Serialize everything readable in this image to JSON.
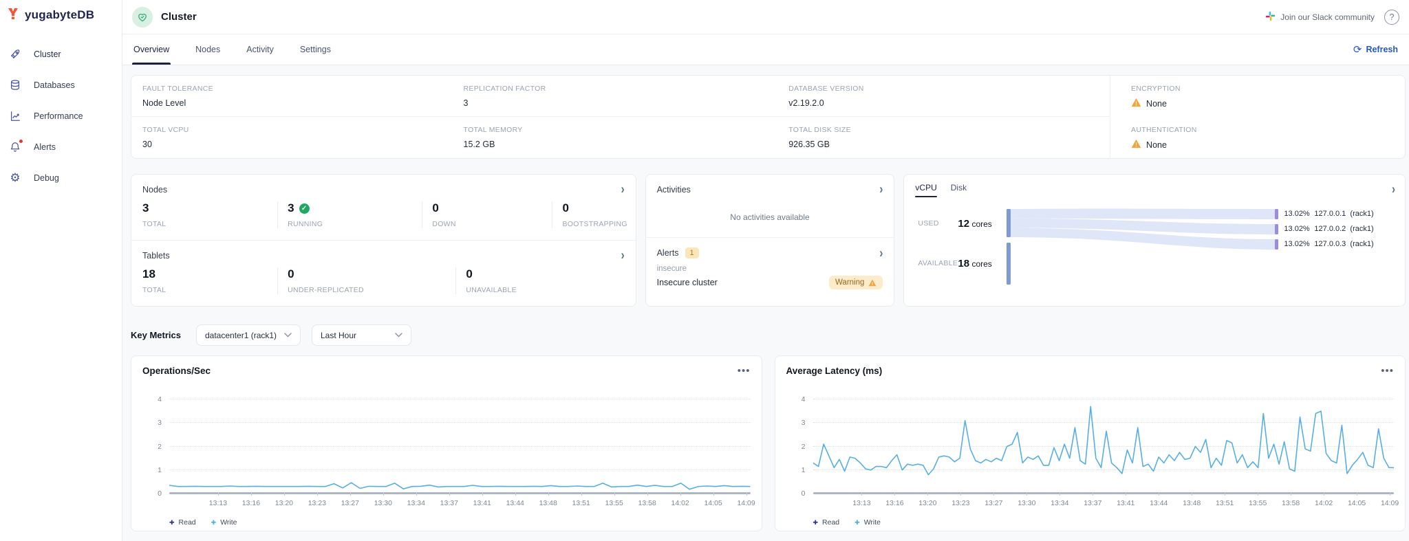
{
  "colors": {
    "brand_navy": "#20244f",
    "accent_blue": "#2457c5",
    "warning_amber": "#f2a33a",
    "success_green": "#1fa861",
    "write_line": "#56aee6",
    "read_line": "#2a2f7e",
    "sankey_left_bar": "#7f98d8",
    "sankey_right_bar": "#9a8ce0",
    "sankey_flow": "#dfe6f7"
  },
  "brand": {
    "name": "yugabyteDB"
  },
  "sidebar": {
    "items": [
      {
        "label": "Cluster",
        "icon": "rocket-icon",
        "active": true
      },
      {
        "label": "Databases",
        "icon": "database-icon",
        "active": false
      },
      {
        "label": "Performance",
        "icon": "performance-chart-icon",
        "active": false
      },
      {
        "label": "Alerts",
        "icon": "bell-icon",
        "active": false,
        "has_notification_dot": true
      },
      {
        "label": "Debug",
        "icon": "gear-icon",
        "active": false
      }
    ]
  },
  "header": {
    "title": "Cluster",
    "slack_label": "Join our Slack community",
    "help_glyph": "?"
  },
  "tabbar": {
    "tabs": [
      {
        "label": "Overview",
        "active": true
      },
      {
        "label": "Nodes",
        "active": false
      },
      {
        "label": "Activity",
        "active": false
      },
      {
        "label": "Settings",
        "active": false
      }
    ],
    "refresh_label": "Refresh"
  },
  "summary": {
    "cells": [
      {
        "label": "FAULT TOLERANCE",
        "value": "Node Level",
        "warning": false
      },
      {
        "label": "REPLICATION FACTOR",
        "value": "3",
        "warning": false
      },
      {
        "label": "DATABASE VERSION",
        "value": "v2.19.2.0",
        "warning": false
      },
      {
        "label": "ENCRYPTION",
        "value": "None",
        "warning": true
      },
      {
        "label": "TOTAL VCPU",
        "value": "30",
        "warning": false
      },
      {
        "label": "TOTAL MEMORY",
        "value": "15.2 GB",
        "warning": false
      },
      {
        "label": "TOTAL DISK SIZE",
        "value": "926.35 GB",
        "warning": false
      },
      {
        "label": "AUTHENTICATION",
        "value": "None",
        "warning": true
      }
    ]
  },
  "nodes_panel": {
    "title": "Nodes",
    "stats": [
      {
        "value": "3",
        "label": "TOTAL",
        "check": false
      },
      {
        "value": "3",
        "label": "RUNNING",
        "check": true
      },
      {
        "value": "0",
        "label": "DOWN",
        "check": false
      },
      {
        "value": "0",
        "label": "BOOTSTRAPPING",
        "check": false
      }
    ]
  },
  "tablets_panel": {
    "title": "Tablets",
    "stats": [
      {
        "value": "18",
        "label": "TOTAL"
      },
      {
        "value": "0",
        "label": "UNDER-REPLICATED"
      },
      {
        "value": "0",
        "label": "UNAVAILABLE"
      }
    ]
  },
  "activities_panel": {
    "title": "Activities",
    "empty_message": "No activities available"
  },
  "alerts_panel": {
    "title": "Alerts",
    "count": "1",
    "alert_name": "insecure",
    "alert_description": "Insecure cluster",
    "severity_badge": "Warning"
  },
  "usage_panel": {
    "tabs": [
      {
        "label": "vCPU",
        "active": true
      },
      {
        "label": "Disk",
        "active": false
      }
    ],
    "used_label": "USED",
    "used_value": "12",
    "used_unit": "cores",
    "available_label": "AVAILABLE",
    "available_value": "18",
    "available_unit": "cores",
    "flows": [
      {
        "pct": "13.02%",
        "node": "127.0.0.1",
        "zone": "(rack1)"
      },
      {
        "pct": "13.02%",
        "node": "127.0.0.2",
        "zone": "(rack1)"
      },
      {
        "pct": "13.02%",
        "node": "127.0.0.3",
        "zone": "(rack1)"
      }
    ]
  },
  "key_metrics": {
    "title": "Key Metrics",
    "region_select_value": "datacenter1 (rack1)",
    "time_select_value": "Last Hour"
  },
  "chart_data": [
    {
      "type": "line",
      "title": "Operations/Sec",
      "x_ticks": [
        "13:13",
        "13:16",
        "13:20",
        "13:23",
        "13:27",
        "13:30",
        "13:34",
        "13:37",
        "13:41",
        "13:44",
        "13:48",
        "13:51",
        "13:55",
        "13:58",
        "14:02",
        "14:05",
        "14:09"
      ],
      "y_ticks": [
        0,
        1,
        2,
        3,
        4
      ],
      "ylim": [
        0,
        4.28
      ],
      "legend": [
        "Read",
        "Write"
      ],
      "series": [
        {
          "name": "Read",
          "color": "#2a2f7e",
          "values": [
            0,
            0
          ]
        },
        {
          "name": "Write",
          "color": "#56aee6",
          "values": [
            0.35,
            0.3,
            0.3,
            0.31,
            0.3,
            0.3,
            0.3,
            0.32,
            0.3,
            0.3,
            0.31,
            0.3,
            0.3,
            0.3,
            0.3,
            0.3,
            0.31,
            0.3,
            0.3,
            0.42,
            0.24,
            0.46,
            0.22,
            0.31,
            0.3,
            0.3,
            0.44,
            0.2,
            0.3,
            0.31,
            0.36,
            0.28,
            0.3,
            0.3,
            0.3,
            0.35,
            0.3,
            0.3,
            0.31,
            0.3,
            0.3,
            0.3,
            0.31,
            0.3,
            0.34,
            0.3,
            0.3,
            0.32,
            0.3,
            0.3,
            0.44,
            0.28,
            0.3,
            0.3,
            0.36,
            0.3,
            0.35,
            0.3,
            0.3,
            0.44,
            0.18,
            0.3,
            0.32,
            0.3,
            0.34,
            0.3,
            0.31,
            0.3
          ]
        }
      ]
    },
    {
      "type": "line",
      "title": "Average Latency (ms)",
      "x_ticks": [
        "13:13",
        "13:16",
        "13:20",
        "13:23",
        "13:27",
        "13:30",
        "13:34",
        "13:37",
        "13:41",
        "13:44",
        "13:48",
        "13:51",
        "13:55",
        "13:58",
        "14:02",
        "14:05",
        "14:09"
      ],
      "y_ticks": [
        0,
        1,
        2,
        3,
        4
      ],
      "ylim": [
        0,
        4.28
      ],
      "legend": [
        "Read",
        "Write"
      ],
      "series": [
        {
          "name": "Read",
          "color": "#2a2f7e",
          "values": [
            0,
            0
          ]
        },
        {
          "name": "Write",
          "color": "#56aee6",
          "values": [
            1.3,
            1.15,
            2.1,
            1.6,
            1.1,
            1.45,
            0.95,
            1.55,
            1.5,
            1.3,
            1.05,
            1.0,
            1.15,
            1.15,
            1.1,
            1.4,
            1.65,
            1.0,
            1.25,
            1.2,
            1.25,
            1.2,
            0.8,
            1.05,
            1.55,
            1.6,
            1.55,
            1.35,
            1.5,
            3.1,
            1.9,
            1.4,
            1.3,
            1.45,
            1.35,
            1.5,
            1.4,
            2.0,
            2.1,
            2.6,
            1.3,
            1.55,
            1.45,
            1.6,
            1.2,
            1.2,
            1.95,
            1.4,
            2.1,
            1.5,
            2.8,
            1.4,
            1.25,
            3.7,
            1.5,
            1.1,
            2.65,
            1.3,
            1.1,
            0.85,
            1.85,
            1.3,
            2.8,
            1.15,
            1.25,
            0.95,
            1.55,
            1.3,
            1.65,
            1.4,
            1.75,
            1.45,
            1.5,
            2.0,
            1.75,
            2.3,
            1.1,
            1.5,
            1.2,
            2.25,
            2.15,
            1.3,
            1.65,
            1.1,
            1.35,
            1.1,
            3.4,
            1.5,
            2.1,
            1.25,
            2.2,
            1.05,
            0.95,
            3.25,
            1.9,
            1.8,
            3.4,
            3.5,
            1.7,
            1.4,
            1.3,
            2.9,
            0.85,
            1.2,
            1.45,
            1.75,
            1.2,
            1.1,
            2.75,
            1.5,
            1.1,
            1.1
          ]
        }
      ]
    }
  ]
}
